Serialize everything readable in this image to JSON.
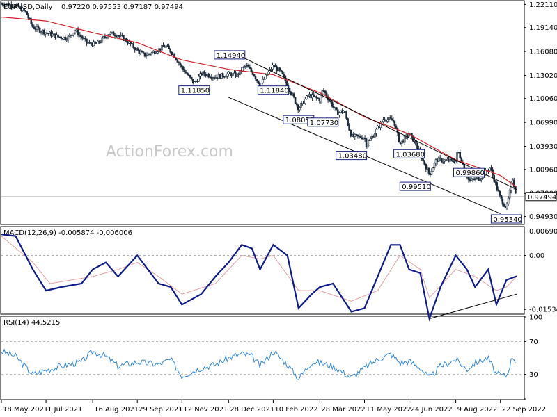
{
  "watermark": "ActionForex.com",
  "chart_data": [
    {
      "type": "candlestick",
      "title": "EURUSD,Daily",
      "ohlc_header": "0.97220 0.97553 0.97187 0.97494",
      "ylim": [
        0.94,
        1.225
      ],
      "y_ticks": [
        "1.22110",
        "1.19140",
        "1.16080",
        "1.13020",
        "1.10060",
        "1.06990",
        "1.03930",
        "1.00960",
        "0.97900",
        "0.94930"
      ],
      "y_tick_values": [
        1.2211,
        1.1914,
        1.1608,
        1.1302,
        1.1006,
        1.0699,
        1.0393,
        1.0096,
        0.979,
        0.9493
      ],
      "current_price": {
        "value": 0.97494,
        "label": "0.97494"
      },
      "x_categories": [
        "18 May 2021",
        "1 Jul 2021",
        "16 Aug 2021",
        "29 Sep 2021",
        "12 Nov 2021",
        "28 Dec 2021",
        "10 Feb 2022",
        "28 Mar 2022",
        "11 May 2022",
        "24 Jun 2022",
        "9 Aug 2022",
        "22 Sep 2022"
      ],
      "close_path": [
        [
          "18 May 2021",
          1.222
        ],
        [
          "25 May 2021",
          1.221
        ],
        [
          "4 Jun 2021",
          1.218
        ],
        [
          "11 Jun 2021",
          1.211
        ],
        [
          "18 Jun 2021",
          1.192
        ],
        [
          "1 Jul 2021",
          1.185
        ],
        [
          "12 Jul 2021",
          1.18
        ],
        [
          "22 Jul 2021",
          1.178
        ],
        [
          "30 Jul 2021",
          1.188
        ],
        [
          "10 Aug 2021",
          1.172
        ],
        [
          "20 Aug 2021",
          1.17
        ],
        [
          "1 Sep 2021",
          1.184
        ],
        [
          "10 Sep 2021",
          1.182
        ],
        [
          "20 Sep 2021",
          1.173
        ],
        [
          "29 Sep 2021",
          1.162
        ],
        [
          "6 Oct 2021",
          1.156
        ],
        [
          "15 Oct 2021",
          1.16
        ],
        [
          "27 Oct 2021",
          1.168
        ],
        [
          "5 Nov 2021",
          1.155
        ],
        [
          "12 Nov 2021",
          1.14
        ],
        [
          "24 Nov 2021",
          1.12
        ],
        [
          "2 Dec 2021",
          1.133
        ],
        [
          "15 Dec 2021",
          1.128
        ],
        [
          "28 Dec 2021",
          1.132
        ],
        [
          "5 Jan 2022",
          1.13
        ],
        [
          "14 Jan 2022",
          1.143
        ],
        [
          "21 Jan 2022",
          1.133
        ],
        [
          "28 Jan 2022",
          1.118
        ],
        [
          "10 Feb 2022",
          1.143
        ],
        [
          "18 Feb 2022",
          1.133
        ],
        [
          "24 Feb 2022",
          1.118
        ],
        [
          "7 Mar 2022",
          1.088
        ],
        [
          "17 Mar 2022",
          1.105
        ],
        [
          "28 Mar 2022",
          1.099
        ],
        [
          "31 Mar 2022",
          1.112
        ],
        [
          "14 Apr 2022",
          1.082
        ],
        [
          "21 Apr 2022",
          1.085
        ],
        [
          "28 Apr 2022",
          1.052
        ],
        [
          "11 May 2022",
          1.051
        ],
        [
          "13 May 2022",
          1.04
        ],
        [
          "30 May 2022",
          1.075
        ],
        [
          "9 Jun 2022",
          1.072
        ],
        [
          "15 Jun 2022",
          1.042
        ],
        [
          "24 Jun 2022",
          1.056
        ],
        [
          "30 Jun 2022",
          1.044
        ],
        [
          "14 Jul 2022",
          1.003
        ],
        [
          "21 Jul 2022",
          1.022
        ],
        [
          "9 Aug 2022",
          1.02
        ],
        [
          "11 Aug 2022",
          1.034
        ],
        [
          "22 Aug 2022",
          0.995
        ],
        [
          "2 Sep 2022",
          0.999
        ],
        [
          "12 Sep 2022",
          1.012
        ],
        [
          "22 Sep 2022",
          0.972
        ],
        [
          "28 Sep 2022",
          0.96
        ],
        [
          "4 Oct 2022",
          0.998
        ],
        [
          "8 Oct 2022",
          0.974
        ]
      ],
      "moving_average": [
        [
          "18 May 2021",
          1.205
        ],
        [
          "1 Jul 2021",
          1.2
        ],
        [
          "16 Aug 2021",
          1.185
        ],
        [
          "29 Sep 2021",
          1.172
        ],
        [
          "12 Nov 2021",
          1.15
        ],
        [
          "28 Dec 2021",
          1.138
        ],
        [
          "10 Feb 2022",
          1.131
        ],
        [
          "28 Mar 2022",
          1.108
        ],
        [
          "11 May 2022",
          1.077
        ],
        [
          "24 Jun 2022",
          1.055
        ],
        [
          "9 Aug 2022",
          1.022
        ],
        [
          "22 Sep 2022",
          1.002
        ],
        [
          "8 Oct 2022",
          0.987
        ]
      ],
      "channel_upper": [
        [
          "28 Dec 2021",
          1.162
        ],
        [
          "8 Oct 2022",
          0.984
        ]
      ],
      "channel_lower": [
        [
          "28 Dec 2021",
          1.102
        ],
        [
          "22 Sep 2022",
          0.953
        ]
      ],
      "annotations": [
        {
          "date": "29 Dec 2021",
          "value": 1.1494,
          "label": "1.14940"
        },
        {
          "date": "24 Nov 2021",
          "value": 1.1185,
          "label": "1.11850"
        },
        {
          "date": "10 Feb 2022",
          "value": 1.1184,
          "label": "1.11840"
        },
        {
          "date": "7 Mar 2022",
          "value": 1.0805,
          "label": "1.08050"
        },
        {
          "date": "31 Mar 2022",
          "value": 1.0773,
          "label": "1.07730"
        },
        {
          "date": "28 Apr 2022",
          "value": 1.0348,
          "label": "1.03480"
        },
        {
          "date": "24 Jun 2022",
          "value": 1.0368,
          "label": "1.03680"
        },
        {
          "date": "30 Jun 2022",
          "value": 0.9951,
          "label": "0.99510"
        },
        {
          "date": "22 Aug 2022",
          "value": 0.9986,
          "label": "0.99860"
        },
        {
          "date": "28 Sep 2022",
          "value": 0.9534,
          "label": "0.95340"
        }
      ]
    },
    {
      "type": "line",
      "title": "MACD(12,26,9) -0.005874 -0.006006",
      "ylim": [
        -0.0165,
        0.008
      ],
      "y_ticks": [
        "0.006906",
        "0.00",
        "-0.015348"
      ],
      "y_tick_values": [
        0.006906,
        0.0,
        -0.015348
      ],
      "series": [
        {
          "values": [
            [
              "18 May 2021",
              0.006
            ],
            [
              "1 Jun 2021",
              0.0055
            ],
            [
              "18 Jun 2021",
              -0.004
            ],
            [
              "1 Jul 2021",
              -0.01
            ],
            [
              "16 Jul 2021",
              -0.009
            ],
            [
              "5 Aug 2021",
              -0.008
            ],
            [
              "16 Aug 2021",
              -0.004
            ],
            [
              "29 Aug 2021",
              -0.002
            ],
            [
              "10 Sep 2021",
              -0.006
            ],
            [
              "29 Sep 2021",
              0.0
            ],
            [
              "20 Oct 2021",
              -0.008
            ],
            [
              "1 Nov 2021",
              -0.009
            ],
            [
              "12 Nov 2021",
              -0.014
            ],
            [
              "1 Dec 2021",
              -0.011
            ],
            [
              "15 Dec 2021",
              -0.006
            ],
            [
              "28 Dec 2021",
              -0.002
            ],
            [
              "10 Jan 2022",
              0.003
            ],
            [
              "20 Jan 2022",
              0.002
            ],
            [
              "28 Jan 2022",
              -0.004
            ],
            [
              "10 Feb 2022",
              0.003
            ],
            [
              "24 Feb 2022",
              0.0
            ],
            [
              "7 Mar 2022",
              -0.015
            ],
            [
              "20 Mar 2022",
              -0.011
            ],
            [
              "28 Mar 2022",
              -0.009
            ],
            [
              "10 Apr 2022",
              -0.008
            ],
            [
              "28 Apr 2022",
              -0.016
            ],
            [
              "11 May 2022",
              -0.015
            ],
            [
              "24 May 2022",
              -0.006
            ],
            [
              "6 Jun 2022",
              0.003
            ],
            [
              "15 Jun 2022",
              0.003
            ],
            [
              "24 Jun 2022",
              -0.004
            ],
            [
              "5 Jul 2022",
              -0.005
            ],
            [
              "14 Jul 2022",
              -0.018
            ],
            [
              "25 Jul 2022",
              -0.009
            ],
            [
              "9 Aug 2022",
              0.0
            ],
            [
              "20 Aug 2022",
              -0.004
            ],
            [
              "28 Aug 2022",
              -0.009
            ],
            [
              "10 Sep 2022",
              -0.004
            ],
            [
              "18 Sep 2022",
              -0.014
            ],
            [
              "28 Sep 2022",
              -0.007
            ],
            [
              "8 Oct 2022",
              -0.0059
            ]
          ]
        },
        {
          "values": [
            [
              "18 May 2021",
              0.0055
            ],
            [
              "18 Jun 2021",
              -0.002
            ],
            [
              "5 Jul 2021",
              -0.008
            ],
            [
              "16 Aug 2021",
              -0.006
            ],
            [
              "10 Sep 2021",
              -0.004
            ],
            [
              "29 Sep 2021",
              -0.002
            ],
            [
              "20 Oct 2021",
              -0.006
            ],
            [
              "12 Nov 2021",
              -0.011
            ],
            [
              "15 Dec 2021",
              -0.008
            ],
            [
              "10 Jan 2022",
              0.0
            ],
            [
              "28 Jan 2022",
              -0.001
            ],
            [
              "10 Feb 2022",
              0.0
            ],
            [
              "7 Mar 2022",
              -0.01
            ],
            [
              "28 Mar 2022",
              -0.01
            ],
            [
              "28 Apr 2022",
              -0.013
            ],
            [
              "24 May 2022",
              -0.01
            ],
            [
              "15 Jun 2022",
              0.0
            ],
            [
              "5 Jul 2022",
              -0.004
            ],
            [
              "14 Jul 2022",
              -0.012
            ],
            [
              "9 Aug 2022",
              -0.004
            ],
            [
              "28 Aug 2022",
              -0.006
            ],
            [
              "18 Sep 2022",
              -0.01
            ],
            [
              "28 Sep 2022",
              -0.009
            ],
            [
              "8 Oct 2022",
              -0.006
            ]
          ]
        }
      ],
      "trendline": [
        [
          "14 Jul 2022",
          -0.018
        ],
        [
          "8 Oct 2022",
          -0.011
        ]
      ]
    },
    {
      "type": "line",
      "title": "RSI(14) 44.5215",
      "ylim": [
        0,
        100
      ],
      "y_ticks": [
        "100",
        "70",
        "30",
        "0"
      ],
      "y_tick_values": [
        100,
        70,
        30,
        0
      ],
      "levels": [
        70,
        30
      ],
      "series": [
        {
          "values": [
            [
              "18 May 2021",
              58
            ],
            [
              "1 Jun 2021",
              52
            ],
            [
              "18 Jun 2021",
              30
            ],
            [
              "1 Jul 2021",
              35
            ],
            [
              "16 Jul 2021",
              40
            ],
            [
              "5 Aug 2021",
              45
            ],
            [
              "16 Aug 2021",
              58
            ],
            [
              "29 Aug 2021",
              52
            ],
            [
              "10 Sep 2021",
              40
            ],
            [
              "29 Sep 2021",
              45
            ],
            [
              "20 Oct 2021",
              42
            ],
            [
              "1 Nov 2021",
              48
            ],
            [
              "12 Nov 2021",
              28
            ],
            [
              "1 Dec 2021",
              38
            ],
            [
              "15 Dec 2021",
              42
            ],
            [
              "28 Dec 2021",
              50
            ],
            [
              "10 Jan 2022",
              55
            ],
            [
              "20 Jan 2022",
              52
            ],
            [
              "28 Jan 2022",
              40
            ],
            [
              "10 Feb 2022",
              58
            ],
            [
              "24 Feb 2022",
              42
            ],
            [
              "7 Mar 2022",
              25
            ],
            [
              "20 Mar 2022",
              45
            ],
            [
              "28 Mar 2022",
              44
            ],
            [
              "10 Apr 2022",
              40
            ],
            [
              "28 Apr 2022",
              26
            ],
            [
              "11 May 2022",
              38
            ],
            [
              "24 May 2022",
              48
            ],
            [
              "6 Jun 2022",
              55
            ],
            [
              "15 Jun 2022",
              44
            ],
            [
              "24 Jun 2022",
              46
            ],
            [
              "5 Jul 2022",
              38
            ],
            [
              "14 Jul 2022",
              25
            ],
            [
              "25 Jul 2022",
              40
            ],
            [
              "9 Aug 2022",
              48
            ],
            [
              "20 Aug 2022",
              36
            ],
            [
              "28 Aug 2022",
              44
            ],
            [
              "10 Sep 2022",
              50
            ],
            [
              "18 Sep 2022",
              30
            ],
            [
              "28 Sep 2022",
              28
            ],
            [
              "4 Oct 2022",
              52
            ],
            [
              "8 Oct 2022",
              44.5
            ]
          ]
        }
      ]
    }
  ]
}
